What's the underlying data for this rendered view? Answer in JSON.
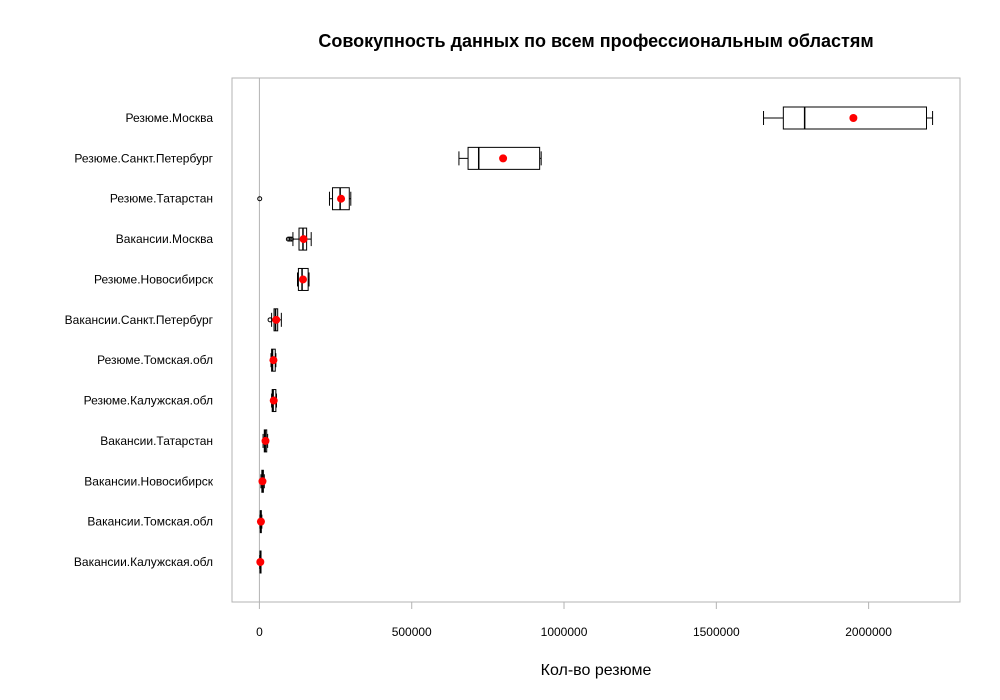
{
  "chart_data": {
    "type": "boxplot",
    "orientation": "horizontal",
    "title": "Совокупность данных по всем профессиональным областям",
    "xlabel": "Кол-во резюме",
    "ylabel": "",
    "xlim": [
      -90000,
      2300000
    ],
    "xticks": [
      0,
      500000,
      1000000,
      1500000,
      2000000
    ],
    "xtick_labels": [
      "0",
      "500000",
      "1000000",
      "1500000",
      "2000000"
    ],
    "reference_line_x": 0,
    "mean_marker_color": "#ff0000",
    "box_color": "#000000",
    "categories": [
      "Резюме.Москва",
      "Резюме.Санкт.Петербург",
      "Резюме.Татарстан",
      "Вакансии.Москва",
      "Резюме.Новосибирск",
      "Вакансии.Санкт.Петербург",
      "Резюме.Томская.обл",
      "Резюме.Калужская.обл",
      "Вакансии.Татарстан",
      "Вакансии.Новосибирск",
      "Вакансии.Томская.обл",
      "Вакансии.Калужская.обл"
    ],
    "boxes": [
      {
        "min": 1655000,
        "q1": 1720000,
        "median": 1790000,
        "q3": 2190000,
        "max": 2210000,
        "mean": 1950000,
        "outliers": []
      },
      {
        "min": 655000,
        "q1": 685000,
        "median": 720000,
        "q3": 920000,
        "max": 925000,
        "mean": 800000,
        "outliers": []
      },
      {
        "min": 230000,
        "q1": 240000,
        "median": 265000,
        "q3": 295000,
        "max": 300000,
        "mean": 268000,
        "outliers": [
          1000
        ]
      },
      {
        "min": 110000,
        "q1": 130000,
        "median": 143000,
        "q3": 155000,
        "max": 170000,
        "mean": 145000,
        "outliers": [
          95000,
          100000,
          105000
        ]
      },
      {
        "min": 125000,
        "q1": 128000,
        "median": 140000,
        "q3": 160000,
        "max": 163000,
        "mean": 143000,
        "outliers": []
      },
      {
        "min": 40000,
        "q1": 48000,
        "median": 53000,
        "q3": 60000,
        "max": 72000,
        "mean": 55000,
        "outliers": [
          35000
        ]
      },
      {
        "min": 38000,
        "q1": 40000,
        "median": 43000,
        "q3": 52000,
        "max": 54000,
        "mean": 46000,
        "outliers": []
      },
      {
        "min": 40000,
        "q1": 42000,
        "median": 45000,
        "q3": 54000,
        "max": 56000,
        "mean": 47000,
        "outliers": []
      },
      {
        "min": 12000,
        "q1": 16000,
        "median": 19000,
        "q3": 24000,
        "max": 27000,
        "mean": 20000,
        "outliers": []
      },
      {
        "min": 5000,
        "q1": 8000,
        "median": 10000,
        "q3": 13000,
        "max": 16000,
        "mean": 10000,
        "outliers": []
      },
      {
        "min": 2000,
        "q1": 3000,
        "median": 4000,
        "q3": 6000,
        "max": 8000,
        "mean": 5000,
        "outliers": []
      },
      {
        "min": 1000,
        "q1": 2000,
        "median": 3000,
        "q3": 4000,
        "max": 5000,
        "mean": 3000,
        "outliers": []
      }
    ]
  }
}
